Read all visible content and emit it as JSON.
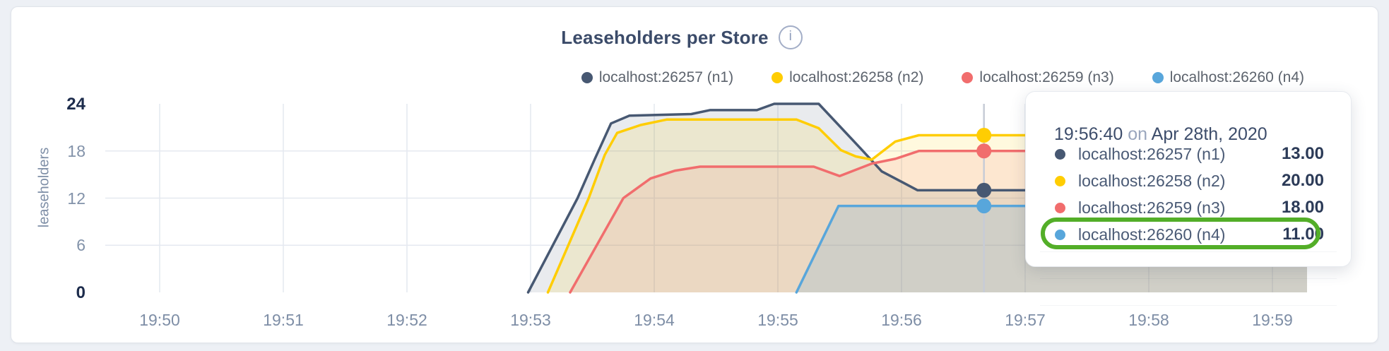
{
  "header": {
    "title": "Leaseholders per Store",
    "info_icon": "i"
  },
  "axes": {
    "ylabel": "leaseholders",
    "y_ticks": [
      {
        "label": "0",
        "value": 0,
        "major": true
      },
      {
        "label": "6",
        "value": 6,
        "major": false
      },
      {
        "label": "12",
        "value": 12,
        "major": false
      },
      {
        "label": "18",
        "value": 18,
        "major": false
      },
      {
        "label": "24",
        "value": 24,
        "major": true
      }
    ],
    "x_ticks": [
      "19:50",
      "19:51",
      "19:52",
      "19:53",
      "19:54",
      "19:55",
      "19:56",
      "19:57",
      "19:58",
      "19:59"
    ]
  },
  "chart_data": {
    "type": "area",
    "title": "Leaseholders per Store",
    "xlabel": "",
    "ylabel": "leaseholders",
    "ylim": [
      0,
      24
    ],
    "x_axis_minutes_after": "19:50",
    "grid": true,
    "legend_position": "top-right",
    "series": [
      {
        "name": "localhost:26257 (n1)",
        "color": "#475872",
        "fill_opacity": 0.12,
        "hover_value": 13,
        "points": [
          [
            2.98,
            0
          ],
          [
            3.38,
            12
          ],
          [
            3.52,
            17
          ],
          [
            3.65,
            21.5
          ],
          [
            3.8,
            22.5
          ],
          [
            4.3,
            22.7
          ],
          [
            4.45,
            23.2
          ],
          [
            4.83,
            23.2
          ],
          [
            4.97,
            24
          ],
          [
            5.33,
            24
          ],
          [
            5.67,
            18.3
          ],
          [
            5.84,
            15.4
          ],
          [
            6.01,
            14.0
          ],
          [
            6.13,
            13
          ],
          [
            9.28,
            13
          ]
        ]
      },
      {
        "name": "localhost:26258 (n2)",
        "color": "#ffcd02",
        "fill_opacity": 0.13,
        "hover_value": 20,
        "points": [
          [
            3.14,
            0
          ],
          [
            3.47,
            12
          ],
          [
            3.6,
            17.5
          ],
          [
            3.7,
            20.3
          ],
          [
            3.89,
            21.3
          ],
          [
            4.1,
            22
          ],
          [
            5.15,
            22
          ],
          [
            5.33,
            20.9
          ],
          [
            5.51,
            18.1
          ],
          [
            5.63,
            17.3
          ],
          [
            5.76,
            16.9
          ],
          [
            5.95,
            19.2
          ],
          [
            6.14,
            20
          ],
          [
            9.28,
            20
          ]
        ]
      },
      {
        "name": "localhost:26259 (n3)",
        "color": "#f16d6d",
        "fill_opacity": 0.12,
        "hover_value": 18,
        "points": [
          [
            3.32,
            0
          ],
          [
            3.75,
            12
          ],
          [
            3.97,
            14.5
          ],
          [
            4.17,
            15.5
          ],
          [
            4.37,
            16
          ],
          [
            5.29,
            16
          ],
          [
            5.5,
            14.8
          ],
          [
            5.76,
            16.4
          ],
          [
            5.95,
            17.0
          ],
          [
            6.14,
            18
          ],
          [
            9.28,
            18
          ]
        ]
      },
      {
        "name": "localhost:26260 (n4)",
        "color": "#58a6db",
        "fill_opacity": 0.18,
        "hover_value": 11,
        "points": [
          [
            5.15,
            0
          ],
          [
            5.49,
            11
          ],
          [
            9.28,
            11
          ]
        ]
      }
    ],
    "hover": {
      "t": 6.6667,
      "time_label": "19:56:40"
    }
  },
  "tooltip": {
    "time": "19:56:40",
    "on_word": "on",
    "date": "Apr 28th, 2020",
    "rows": [
      {
        "label": "localhost:26257 (n1)",
        "value": "13.00",
        "color": "#475872"
      },
      {
        "label": "localhost:26258 (n2)",
        "value": "20.00",
        "color": "#ffcd02"
      },
      {
        "label": "localhost:26259 (n3)",
        "value": "18.00",
        "color": "#f16d6d"
      },
      {
        "label": "localhost:26260 (n4)",
        "value": "11.00",
        "color": "#58a6db"
      }
    ],
    "highlight_row_index": 3,
    "highlight_color": "#53ae28"
  }
}
